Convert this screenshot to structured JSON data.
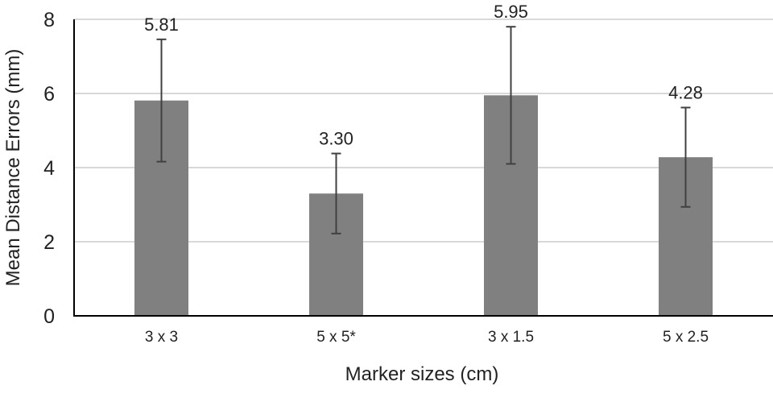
{
  "chart_data": {
    "type": "bar",
    "title": "",
    "xlabel": "Marker sizes (cm)",
    "ylabel": "Mean Distance Errors (mm)",
    "categories": [
      "3 x 3",
      "5 x 5*",
      "3 x 1.5",
      "5 x 2.5"
    ],
    "values": [
      5.81,
      3.3,
      5.95,
      4.28
    ],
    "data_labels": [
      "5.81",
      "3.30",
      "5.95",
      "4.28"
    ],
    "error": [
      1.65,
      1.08,
      1.85,
      1.34
    ],
    "ylim": [
      0,
      8
    ],
    "yticks": [
      0,
      2,
      4,
      6,
      8
    ],
    "grid": true,
    "colors": {
      "bar": "#808080",
      "grid": "#d9d9d9",
      "axis": "#000000",
      "error": "#404040"
    }
  }
}
